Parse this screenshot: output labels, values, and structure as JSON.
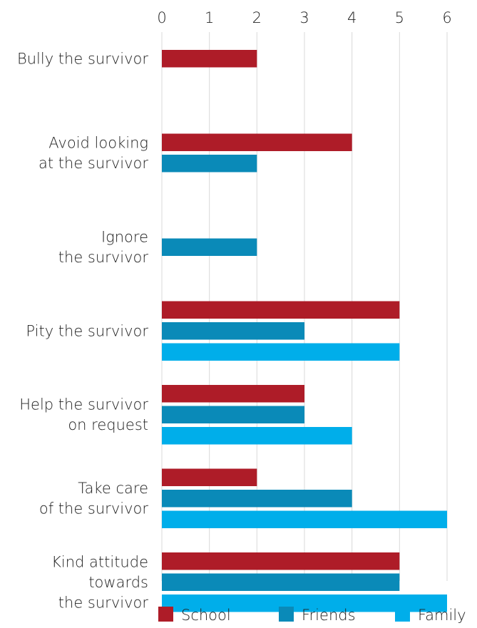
{
  "chart_data": {
    "type": "bar",
    "orientation": "horizontal",
    "axis_position": "top",
    "grid": true,
    "legend_position": "bottom",
    "xlim": [
      0,
      6
    ],
    "ticks": [
      "0",
      "1",
      "2",
      "3",
      "4",
      "5",
      "6"
    ],
    "categories": [
      [
        "Bully the survivor"
      ],
      [
        "Avoid looking",
        "at the survivor"
      ],
      [
        "Ignore",
        "the survivor"
      ],
      [
        "Pity the survivor"
      ],
      [
        "Help the survivor",
        "on request"
      ],
      [
        "Take care",
        "of the survivor"
      ],
      [
        "Kind attitude",
        "towards",
        "the survivor"
      ]
    ],
    "series": [
      {
        "name": "School",
        "color": "#ae1c28",
        "values": [
          2,
          4,
          null,
          5,
          3,
          2,
          5
        ]
      },
      {
        "name": "Friends",
        "color": "#0a8ab8",
        "values": [
          null,
          2,
          2,
          3,
          3,
          4,
          5
        ]
      },
      {
        "name": "Family",
        "color": "#00aeea",
        "values": [
          null,
          null,
          null,
          5,
          4,
          6,
          6
        ]
      }
    ]
  }
}
